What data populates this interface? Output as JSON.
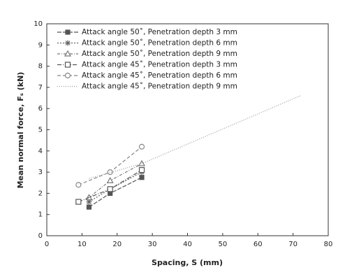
{
  "chart_data": {
    "type": "line",
    "xlabel": "Spacing, S (mm)",
    "ylabel": "Mean normal force, Fₛ (kN)",
    "xlim": [
      0,
      80
    ],
    "xticks": [
      0,
      10,
      20,
      30,
      40,
      50,
      60,
      70,
      80
    ],
    "ylim": [
      0,
      10
    ],
    "yticks": [
      0,
      1,
      2,
      3,
      4,
      5,
      6,
      7,
      8,
      9,
      10
    ],
    "legend": "upper-left",
    "series": [
      {
        "name": "Attack angle 50˚, Penetration depth 3 mm",
        "color": "#555555",
        "marker": "square",
        "dash": "6,2",
        "x": [
          12,
          18,
          27
        ],
        "values": [
          1.35,
          2.0,
          2.75
        ]
      },
      {
        "name": "Attack angle 50˚, Penetration depth 6 mm",
        "color": "#666666",
        "marker": "star",
        "dash": "2,2",
        "x": [
          12,
          18,
          27
        ],
        "values": [
          1.6,
          2.2,
          3.0
        ]
      },
      {
        "name": "Attack angle 50˚, Penetration depth 9 mm",
        "color": "#777777",
        "marker": "triangle",
        "dash": "4,2,1,2",
        "x": [
          12,
          18,
          27
        ],
        "values": [
          1.8,
          2.6,
          3.4
        ]
      },
      {
        "name": "Attack angle 45˚, Penetration depth 3 mm",
        "color": "#555555",
        "marker": "open-square",
        "dash": "6,2,1,2",
        "x": [
          9,
          18,
          27
        ],
        "values": [
          1.6,
          2.2,
          3.1
        ]
      },
      {
        "name": "Attack angle 45˚, Penetration depth 6 mm",
        "color": "#888888",
        "marker": "circle",
        "dash": "5,3",
        "x": [
          9,
          18,
          27
        ],
        "values": [
          2.4,
          3.0,
          4.2
        ]
      },
      {
        "name": "Attack angle 45˚, Penetration depth 9 mm",
        "color": "#999999",
        "marker": "none",
        "dash": "1,2",
        "x": [
          12,
          27,
          72
        ],
        "values": [
          2.7,
          3.4,
          6.6
        ]
      }
    ]
  }
}
